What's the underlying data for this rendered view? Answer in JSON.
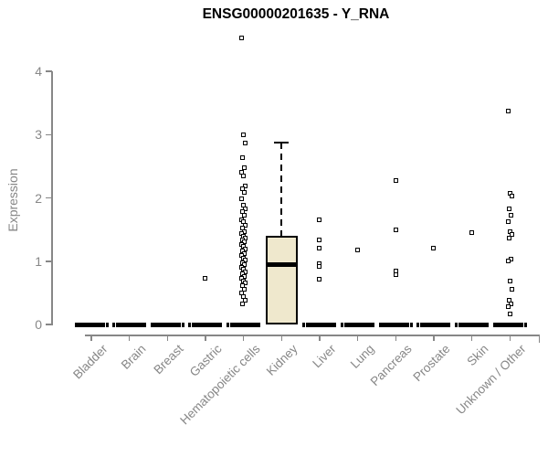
{
  "chart_data": {
    "type": "boxplot",
    "title": "ENSG00000201635 - Y_RNA",
    "ylabel": "Expression",
    "xlabel": "",
    "ylim": [
      0,
      4
    ],
    "yticks": [
      0,
      1,
      2,
      3,
      4
    ],
    "grid": false,
    "legend": false,
    "categories": [
      "Bladder",
      "Brain",
      "Breast",
      "Gastric",
      "Hematopoietic cells",
      "Kidney",
      "Liver",
      "Lung",
      "Pancreas",
      "Prostate",
      "Skin",
      "Unknown / Other"
    ],
    "colors": {
      "box_fill": "#efe8cd",
      "box_border": "#000000",
      "points": "#000000",
      "axis": "#878787",
      "title": "#000000",
      "background": "#ffffff"
    },
    "groups": [
      {
        "name": "Bladder",
        "collapsed_at_zero": true,
        "points": []
      },
      {
        "name": "Brain",
        "collapsed_at_zero": true,
        "points": []
      },
      {
        "name": "Breast",
        "collapsed_at_zero": true,
        "points": []
      },
      {
        "name": "Gastric",
        "collapsed_at_zero": true,
        "points": [
          0.73
        ]
      },
      {
        "name": "Hematopoietic cells",
        "collapsed_at_zero": true,
        "points": [
          4.52,
          2.99,
          2.87,
          2.64,
          2.48,
          2.41,
          2.34,
          2.19,
          2.14,
          2.08,
          1.98,
          1.88,
          1.83,
          1.78,
          1.73,
          1.66,
          1.62,
          1.57,
          1.52,
          1.47,
          1.44,
          1.4,
          1.37,
          1.33,
          1.3,
          1.26,
          1.23,
          1.19,
          1.16,
          1.12,
          1.09,
          1.05,
          1.02,
          0.98,
          0.95,
          0.9,
          0.87,
          0.83,
          0.8,
          0.76,
          0.73,
          0.69,
          0.66,
          0.62,
          0.55,
          0.5,
          0.44,
          0.38,
          0.33
        ]
      },
      {
        "name": "Kidney",
        "collapsed_at_zero": false,
        "box": {
          "whisker_high": 2.88,
          "q3": 1.4,
          "median": 0.95,
          "q1": 0,
          "whisker_low": 0
        },
        "points": []
      },
      {
        "name": "Liver",
        "collapsed_at_zero": true,
        "points": [
          1.66,
          1.33,
          1.21,
          0.96,
          0.91,
          0.72
        ]
      },
      {
        "name": "Lung",
        "collapsed_at_zero": true,
        "points": [
          1.18
        ]
      },
      {
        "name": "Pancreas",
        "collapsed_at_zero": true,
        "points": [
          2.28,
          1.49,
          0.84,
          0.79
        ]
      },
      {
        "name": "Prostate",
        "collapsed_at_zero": true,
        "points": [
          1.21
        ]
      },
      {
        "name": "Skin",
        "collapsed_at_zero": true,
        "points": [
          1.45
        ]
      },
      {
        "name": "Unknown / Other",
        "collapsed_at_zero": true,
        "points": [
          3.37,
          2.07,
          2.03,
          1.83,
          1.73,
          1.62,
          1.47,
          1.42,
          1.37,
          1.03,
          1.0,
          0.68,
          0.55,
          0.38,
          0.33,
          0.28,
          0.17
        ]
      }
    ]
  }
}
